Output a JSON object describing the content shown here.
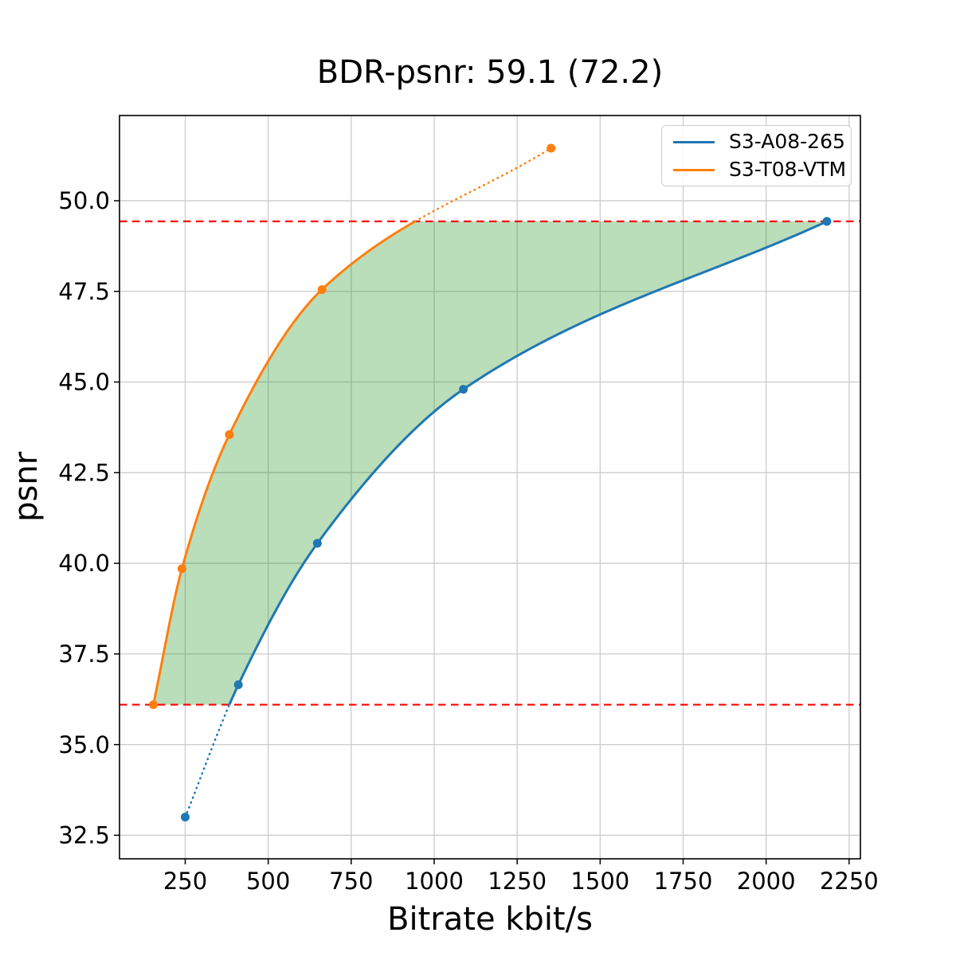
{
  "title": "BDR-psnr: 59.1 (72.2)",
  "chart_data": {
    "type": "line",
    "title": "BDR-psnr: 59.1 (72.2)",
    "xlabel": "Bitrate kbit/s",
    "ylabel": "psnr",
    "xlim": [
      52,
      2284
    ],
    "ylim": [
      31.85,
      52.35
    ],
    "grid": true,
    "legend_position": "upper right",
    "xticks": [
      250,
      500,
      750,
      1000,
      1250,
      1500,
      1750,
      2000,
      2250
    ],
    "xtick_labels": [
      "250",
      "500",
      "750",
      "1000",
      "1250",
      "1500",
      "1750",
      "2000",
      "2250"
    ],
    "yticks": [
      32.5,
      35.0,
      37.5,
      40.0,
      42.5,
      45.0,
      47.5,
      50.0
    ],
    "ytick_labels": [
      "32.5",
      "35.0",
      "37.5",
      "40.0",
      "42.5",
      "45.0",
      "47.5",
      "50.0"
    ],
    "series": [
      {
        "name": "S3-A08-265",
        "color": "#1f77b4",
        "x": [
          250,
          410,
          648,
          1088,
          2183
        ],
        "y": [
          33.0,
          36.65,
          40.55,
          44.8,
          49.43
        ],
        "style_note": "dotted below lower red line, solid above",
        "dotted_below_y": 36.1
      },
      {
        "name": "S3-T08-VTM",
        "color": "#ff7f0e",
        "x": [
          154,
          240,
          383,
          662,
          1352
        ],
        "y": [
          36.1,
          39.85,
          43.55,
          47.55,
          51.45
        ],
        "style_note": "solid below upper red line, dotted above",
        "dotted_above_y": 49.43
      }
    ],
    "hlines": [
      {
        "y": 36.1,
        "color": "#ff0000",
        "style": "dashed"
      },
      {
        "y": 49.43,
        "color": "#ff0000",
        "style": "dashed"
      }
    ],
    "fill_between": {
      "description": "shaded overlap region between the two rate-distortion curves, bounded by the red dashed lines",
      "color": "#008000",
      "opacity": 0.27
    },
    "colors": {
      "grid": "#cccccc",
      "spine": "#000000",
      "tick": "#000000",
      "text": "#000000"
    }
  },
  "legend": {
    "entries": [
      {
        "label": "S3-A08-265",
        "color": "#1f77b4"
      },
      {
        "label": "S3-T08-VTM",
        "color": "#ff7f0e"
      }
    ]
  }
}
